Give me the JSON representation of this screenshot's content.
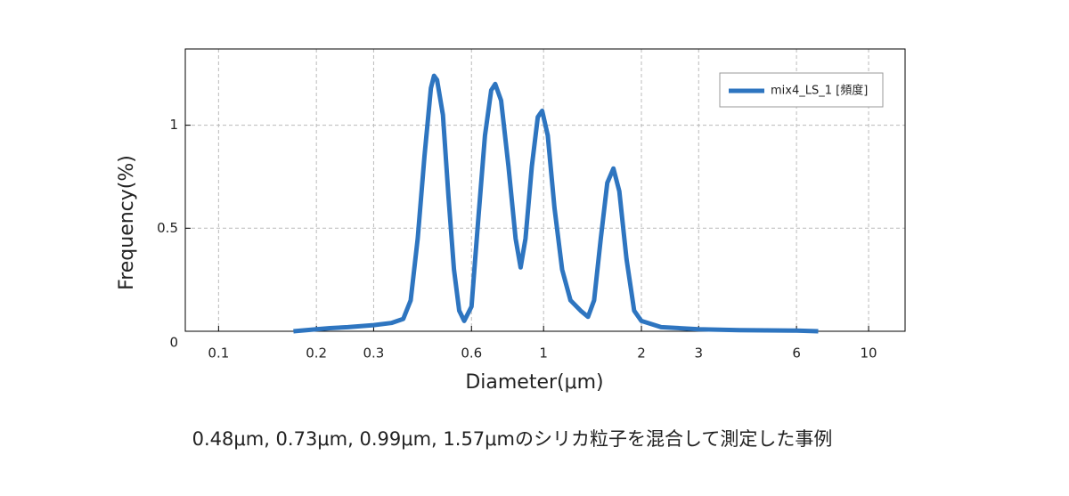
{
  "chart_data": {
    "type": "line",
    "x_label": "Diameter(μm)",
    "y_label": "Frequency(%)",
    "caption": "0.48μm, 0.73μm, 0.99μm, 1.57μmのシリカ粒子を混合して測定した事例",
    "x_scale": "log",
    "x": [
      0.17,
      0.2,
      0.22,
      0.25,
      0.3,
      0.34,
      0.37,
      0.39,
      0.41,
      0.43,
      0.45,
      0.46,
      0.47,
      0.49,
      0.51,
      0.53,
      0.55,
      0.57,
      0.6,
      0.63,
      0.66,
      0.69,
      0.71,
      0.74,
      0.78,
      0.82,
      0.85,
      0.88,
      0.92,
      0.96,
      0.99,
      1.03,
      1.08,
      1.14,
      1.21,
      1.3,
      1.37,
      1.43,
      1.5,
      1.57,
      1.64,
      1.71,
      1.8,
      1.9,
      2.0,
      2.3,
      3,
      4,
      6,
      7
    ],
    "series": [
      {
        "name": "mix4_LS_1 [頻度]",
        "color": "#2e75c0",
        "values": [
          0,
          0.01,
          0.015,
          0.02,
          0.03,
          0.04,
          0.06,
          0.15,
          0.45,
          0.85,
          1.18,
          1.24,
          1.22,
          1.05,
          0.65,
          0.3,
          0.1,
          0.05,
          0.12,
          0.55,
          0.95,
          1.17,
          1.2,
          1.12,
          0.8,
          0.45,
          0.31,
          0.45,
          0.8,
          1.04,
          1.07,
          0.95,
          0.6,
          0.3,
          0.15,
          0.1,
          0.07,
          0.15,
          0.45,
          0.72,
          0.79,
          0.68,
          0.35,
          0.1,
          0.05,
          0.02,
          0.01,
          0.005,
          0.003,
          0
        ]
      }
    ],
    "xlim": [
      0.079,
      12.95
    ],
    "ylim": [
      0,
      1.37
    ],
    "xticks": [
      0.1,
      0.2,
      0.3,
      0.6,
      1,
      2,
      3,
      6,
      10
    ],
    "yticks": [
      0,
      0.5,
      1
    ],
    "grid": true,
    "legend": "upper right"
  }
}
